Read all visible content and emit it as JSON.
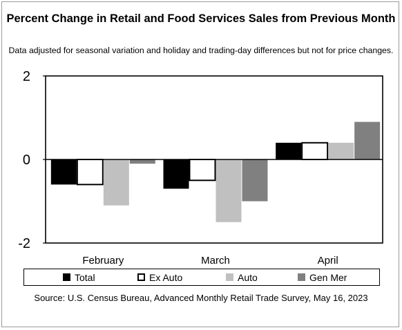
{
  "chart_data": {
    "type": "bar",
    "title": "Percent Change in Retail and Food Services Sales from Previous Month",
    "subtitle": "Data adjusted for seasonal variation and holiday and trading-day differences but not for price changes.",
    "categories": [
      "February",
      "March",
      "April"
    ],
    "series": [
      {
        "name": "Total",
        "values": [
          -0.6,
          -0.7,
          0.4
        ],
        "color": "#000000"
      },
      {
        "name": "Ex Auto",
        "values": [
          -0.6,
          -0.5,
          0.4
        ],
        "color": "#ffffff"
      },
      {
        "name": "Auto",
        "values": [
          -1.1,
          -1.5,
          0.4
        ],
        "color": "#c0c0c0"
      },
      {
        "name": "Gen Mer",
        "values": [
          -0.1,
          -1.0,
          0.9
        ],
        "color": "#808080"
      }
    ],
    "yticks": [
      2,
      0,
      -2
    ],
    "ylim": [
      -2,
      2
    ],
    "grid": false,
    "legend_position": "bottom",
    "source": "Source: U.S. Census Bureau, Advanced Monthly Retail Trade Survey, May 16, 2023"
  }
}
